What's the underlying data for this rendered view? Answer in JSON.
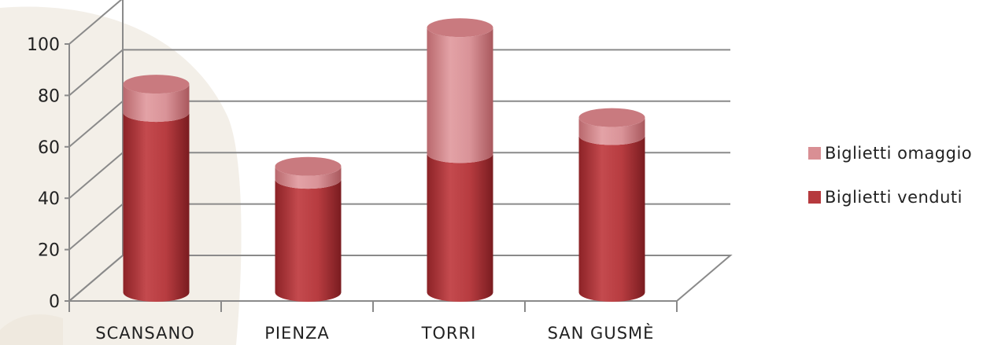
{
  "chart_data": {
    "type": "bar",
    "stacked": true,
    "style": "3d-cylinder",
    "categories": [
      "SCANSANO",
      "PIENZA",
      "TORRI",
      "SAN GUSMÈ"
    ],
    "series": [
      {
        "name": "Biglietti venduti",
        "values": [
          70,
          44,
          54,
          61
        ],
        "color": "#b63a3e"
      },
      {
        "name": "Biglietti omaggio",
        "values": [
          11,
          5,
          49,
          7
        ],
        "color": "#d98f94"
      }
    ],
    "yticks": [
      0,
      20,
      40,
      60,
      80,
      100
    ],
    "ylim": [
      0,
      100
    ],
    "legend_position": "right",
    "grid": true,
    "title": "",
    "xlabel": "",
    "ylabel": ""
  }
}
